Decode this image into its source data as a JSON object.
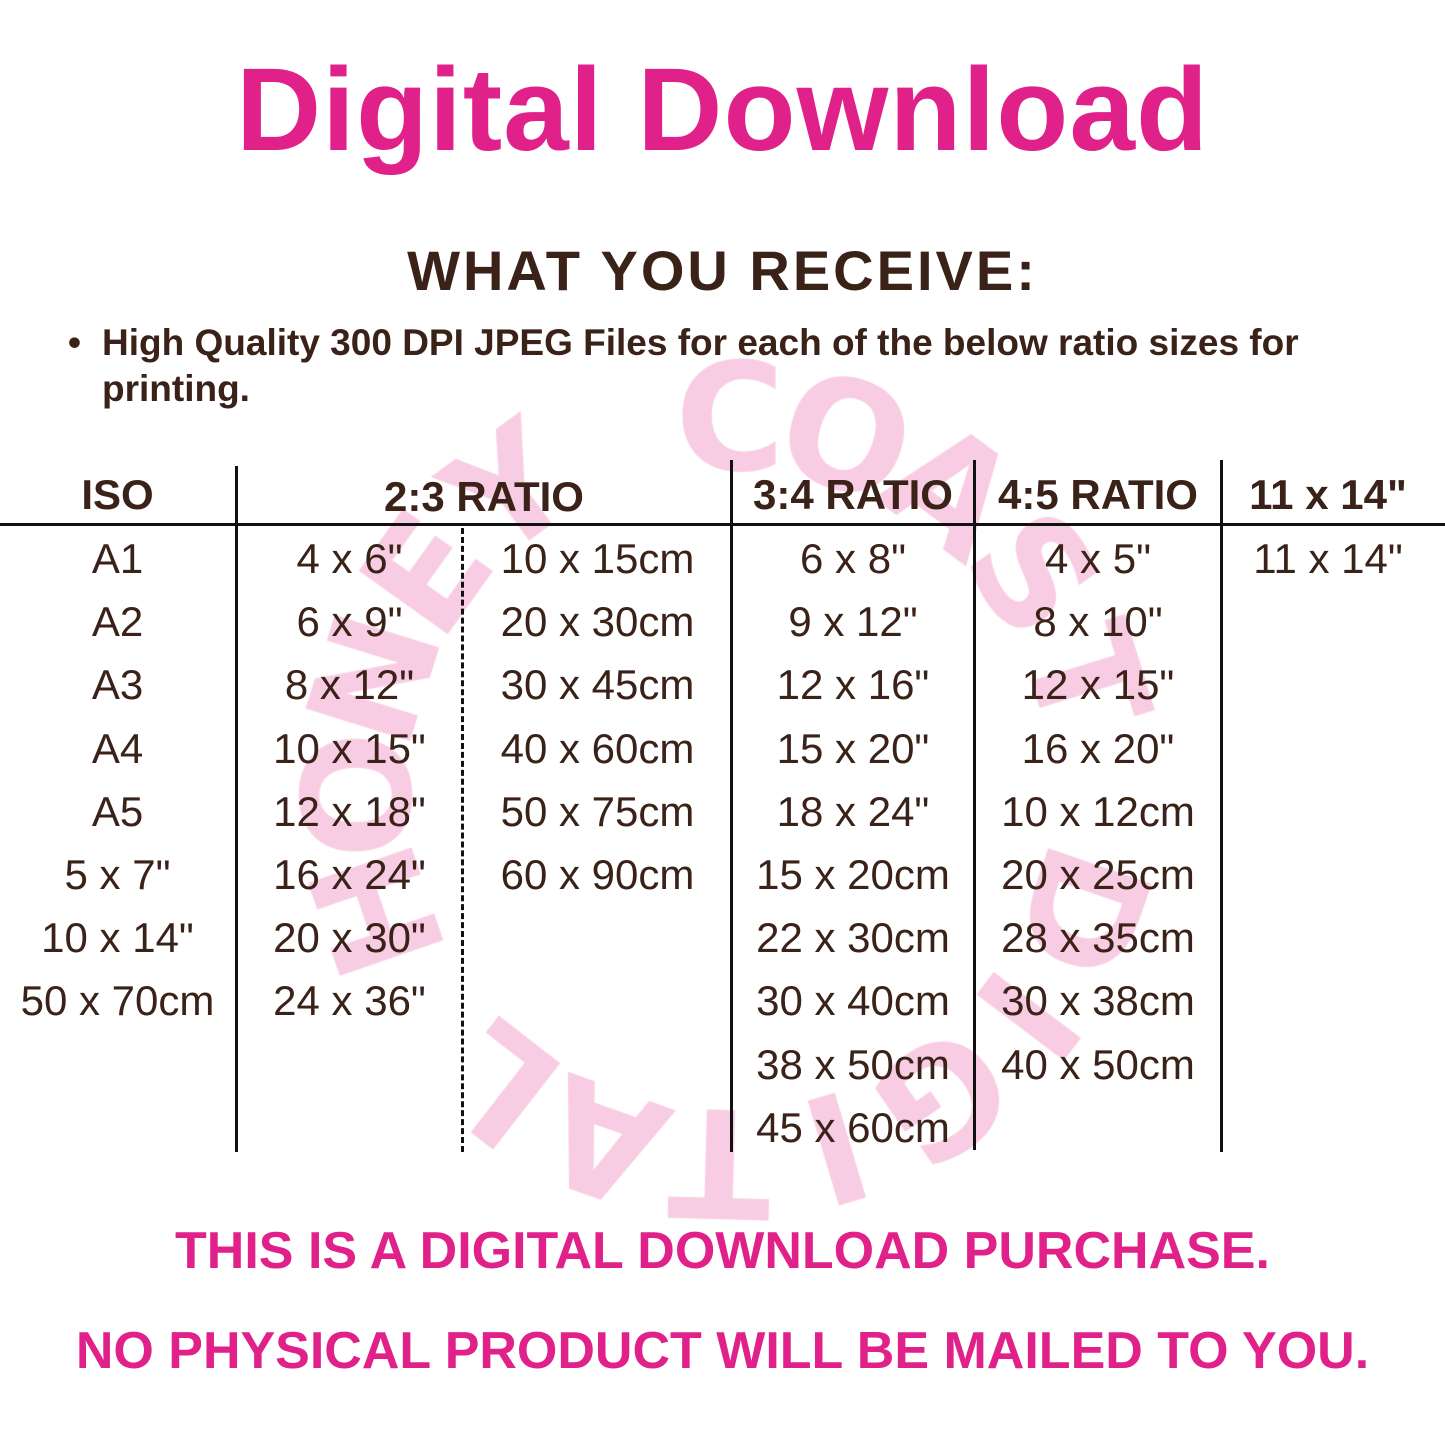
{
  "title": "Digital Download",
  "subtitle": "WHAT YOU RECEIVE:",
  "bullet": {
    "marker": "•",
    "text": "High Quality 300 DPI JPEG Files for each of the below ratio sizes for printing."
  },
  "watermark": {
    "text": "HONEY COAST DIGITAL",
    "color": "#f8cde3"
  },
  "colors": {
    "accent": "#e0218a",
    "text": "#3a2218"
  },
  "table": {
    "headers": {
      "iso": "ISO",
      "ratio_2_3": "2:3 RATIO",
      "ratio_3_4": "3:4 RATIO",
      "ratio_4_5": "4:5 RATIO",
      "size_11_14": "11 x 14\""
    },
    "iso": [
      "A1",
      "A2",
      "A3",
      "A4",
      "A5",
      "5 x 7\"",
      "10 x 14\"",
      "50 x 70cm"
    ],
    "ratio_2_3_inches": [
      "4 x 6\"",
      "6 x 9\"",
      "8 x 12\"",
      "10 x 15\"",
      "12 x 18\"",
      "16 x 24\"",
      "20 x 30\"",
      "24 x 36\""
    ],
    "ratio_2_3_cm": [
      "10 x 15cm",
      "20 x 30cm",
      "30 x 45cm",
      "40 x 60cm",
      "50 x 75cm",
      "60 x 90cm"
    ],
    "ratio_3_4": [
      "6 x 8\"",
      "9 x 12\"",
      "12 x 16\"",
      "15 x 20\"",
      "18 x 24\"",
      "15 x 20cm",
      "22 x 30cm",
      "30 x 40cm",
      "38 x 50cm",
      "45 x 60cm"
    ],
    "ratio_4_5": [
      "4 x 5\"",
      "8 x 10\"",
      "12 x 15\"",
      "16 x 20\"",
      "10 x 12cm",
      "20 x 25cm",
      "28 x 35cm",
      "30 x 38cm",
      "40 x 50cm"
    ],
    "size_11_14": [
      "11 x 14\""
    ]
  },
  "notice": {
    "line1": "THIS IS A DIGITAL DOWNLOAD PURCHASE.",
    "line2": "NO PHYSICAL PRODUCT WILL BE MAILED TO YOU."
  }
}
